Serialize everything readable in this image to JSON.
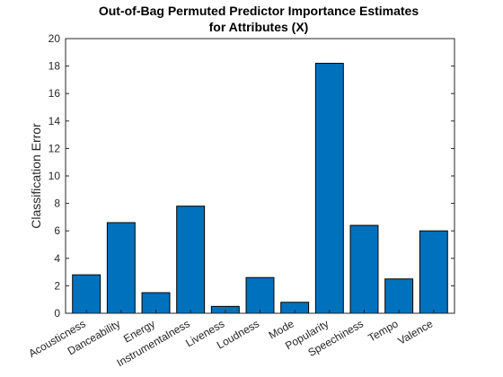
{
  "chart_data": {
    "type": "bar",
    "title": [
      "Out-of-Bag Permuted Predictor Importance Estimates",
      "for Attributes (X)"
    ],
    "xlabel": "",
    "ylabel": "Classification Error",
    "categories": [
      "Acousticness",
      "Danceability",
      "Energy",
      "Instrumentalness",
      "Liveness",
      "Loudness",
      "Mode",
      "Popularity",
      "Speechiness",
      "Tempo",
      "Valence"
    ],
    "values": [
      2.8,
      6.6,
      1.5,
      7.8,
      0.5,
      2.6,
      0.8,
      18.2,
      6.4,
      2.5,
      6.0
    ],
    "ylim": [
      0,
      20
    ],
    "yticks": [
      "0",
      "2",
      "4",
      "6",
      "8",
      "10",
      "12",
      "14",
      "16",
      "18",
      "20"
    ],
    "grid": false,
    "bar_color": "#0072BD",
    "bar_edge_color": "#000000"
  }
}
